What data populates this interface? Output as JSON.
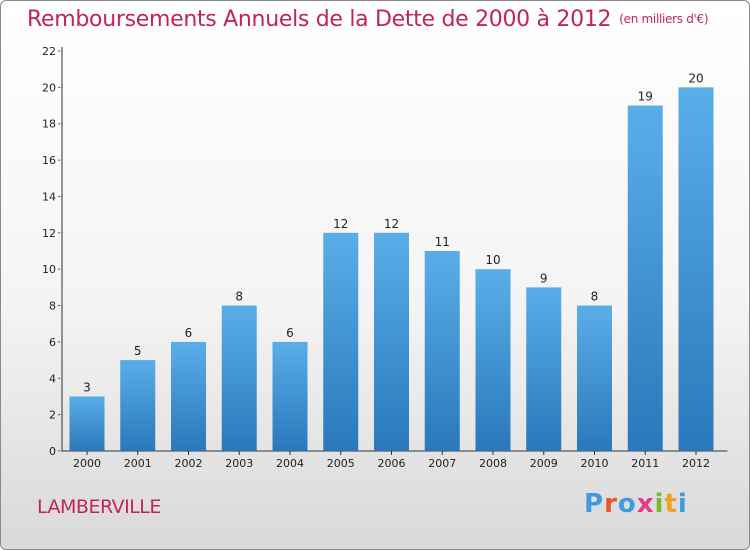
{
  "page": {
    "title": "Remboursements Annuels de la Dette de 2000 à 2012",
    "unit": "(en milliers d'€)",
    "commune": "LAMBERVILLE",
    "brand": {
      "letters": [
        "P",
        "r",
        "o",
        "x",
        "i",
        "t",
        "i"
      ],
      "colors": [
        "#3d9be0",
        "#e8572a",
        "#3d9be0",
        "#e23b8b",
        "#7ab929",
        "#f0a21e",
        "#3d9be0"
      ]
    }
  },
  "colors": {
    "title": "#c0245f",
    "bar_light": "#5aaee8",
    "bar_dark": "#2a78bb",
    "axis": "#333333",
    "grid_tick": "#555555"
  },
  "chart_data": {
    "type": "bar",
    "categories": [
      "2000",
      "2001",
      "2002",
      "2003",
      "2004",
      "2005",
      "2006",
      "2007",
      "2008",
      "2009",
      "2010",
      "2011",
      "2012"
    ],
    "values": [
      3,
      5,
      6,
      8,
      6,
      12,
      12,
      11,
      10,
      9,
      8,
      19,
      20
    ],
    "title": "Remboursements Annuels de la Dette de 2000 à 2012",
    "subtitle": "(en milliers d'€)",
    "xlabel": "",
    "ylabel": "",
    "ylim": [
      0,
      22
    ],
    "yticks": [
      0,
      2,
      4,
      6,
      8,
      10,
      12,
      14,
      16,
      18,
      20,
      22
    ],
    "data_labels": true,
    "grid": false,
    "legend": "none"
  }
}
